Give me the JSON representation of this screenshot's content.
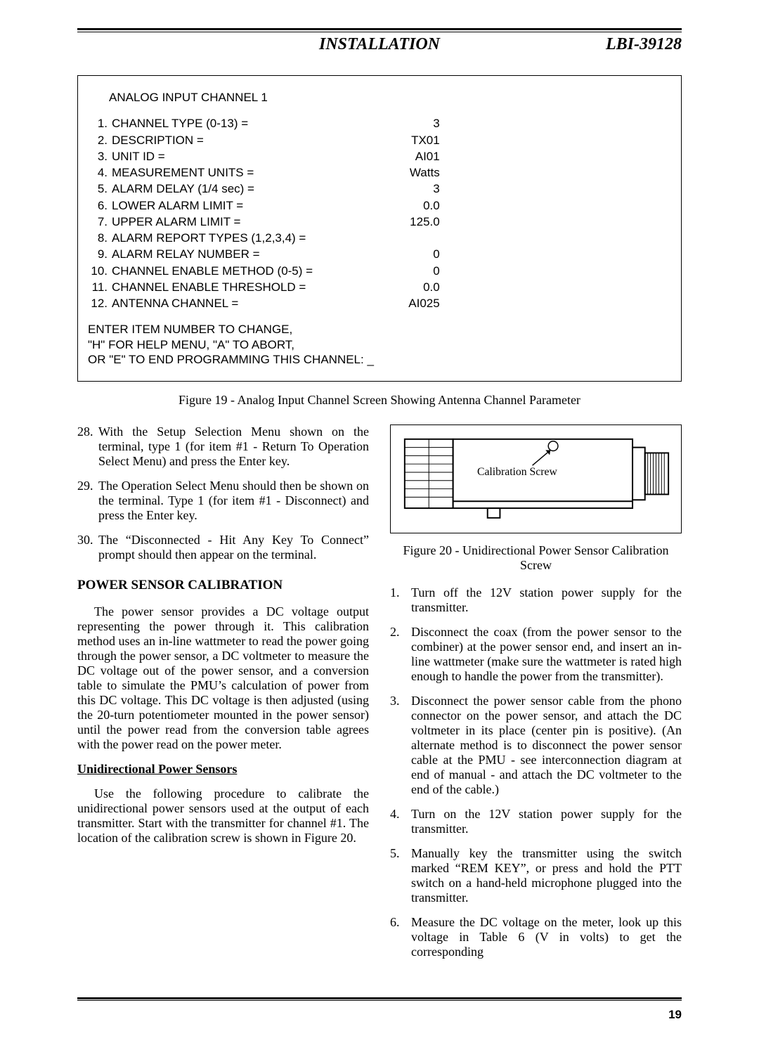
{
  "header": {
    "center": "INSTALLATION",
    "right": "LBI-39128"
  },
  "screen": {
    "title": "ANALOG INPUT CHANNEL 1",
    "params": [
      {
        "n": "1.",
        "label": "CHANNEL TYPE (0-13) =",
        "value": "3"
      },
      {
        "n": "2.",
        "label": "DESCRIPTION =",
        "value": "TX01"
      },
      {
        "n": "3.",
        "label": "UNIT ID =",
        "value": "AI01"
      },
      {
        "n": "4.",
        "label": "MEASUREMENT UNITS =",
        "value": "Watts"
      },
      {
        "n": "5.",
        "label": "ALARM DELAY (1/4 sec) =",
        "value": "3"
      },
      {
        "n": "6.",
        "label": "LOWER ALARM LIMIT =",
        "value": "0.0"
      },
      {
        "n": "7.",
        "label": "UPPER ALARM LIMIT =",
        "value": "125.0"
      },
      {
        "n": "8.",
        "label": "ALARM REPORT TYPES (1,2,3,4) =",
        "value": ""
      },
      {
        "n": "9.",
        "label": "ALARM RELAY NUMBER =",
        "value": "0"
      },
      {
        "n": "10.",
        "label": "CHANNEL ENABLE METHOD (0-5) =",
        "value": "0"
      },
      {
        "n": "11.",
        "label": "CHANNEL ENABLE THRESHOLD =",
        "value": "0.0"
      },
      {
        "n": "12.",
        "label": "ANTENNA CHANNEL =",
        "value": "AI025"
      }
    ],
    "footer1": "ENTER ITEM NUMBER TO CHANGE,",
    "footer2": "\"H\" FOR HELP MENU, \"A\" TO ABORT,",
    "footer3": "OR \"E\" TO END PROGRAMMING THIS CHANNEL: _"
  },
  "fig19": "Figure 19 - Analog Input Channel Screen Showing Antenna Channel Parameter",
  "left": {
    "steps": [
      {
        "n": "28.",
        "t": "With the Setup Selection Menu shown on the terminal, type 1 (for item #1 - Return To Operation Select Menu) and press the Enter key."
      },
      {
        "n": "29.",
        "t": "The Operation Select Menu should then be shown on the terminal. Type 1 (for item #1 - Disconnect) and press the Enter key."
      },
      {
        "n": "30.",
        "t": "The “Disconnected - Hit Any Key To Connect” prompt should then appear on the terminal."
      }
    ],
    "heading": "POWER SENSOR CALIBRATION",
    "para1": "The power sensor provides a DC voltage output representing the power through it. This calibration method uses an in-line wattmeter to read the power going through the power sensor, a DC voltmeter to measure the DC voltage out of the power sensor, and a conversion table to simulate the PMU’s calculation of power from this DC voltage. This DC voltage is then adjusted (using the 20-turn potentiometer mounted in the power sensor) until the power read from the conversion table agrees with the power read on the power meter.",
    "sub": "Unidirectional Power Sensors",
    "para2": "Use the following procedure to calibrate the unidirectional power sensors used at the output of each transmitter. Start with the transmitter for channel #1. The location of the calibration screw is shown in Figure 20."
  },
  "right": {
    "diagram_label": "Calibration Screw",
    "fig20": "Figure 20 - Unidirectional Power Sensor Calibration Screw",
    "steps": [
      {
        "n": "1.",
        "t": "Turn off the 12V station power supply for the transmitter."
      },
      {
        "n": "2.",
        "t": "Disconnect the coax (from the power sensor to the combiner) at the power sensor end, and insert an in-line wattmeter (make sure the wattmeter is rated high enough to handle the power from the transmitter)."
      },
      {
        "n": "3.",
        "t": "Disconnect the power sensor cable from the phono connector on the power sensor, and attach the DC voltmeter in its place (center pin is positive). (An alternate method is to disconnect the power sensor cable at the PMU - see interconnection diagram at end of manual - and attach the DC voltmeter to the end of the cable.)"
      },
      {
        "n": "4.",
        "t": "Turn on the 12V station power supply for the transmitter."
      },
      {
        "n": "5.",
        "t": "Manually key the transmitter using the switch marked “REM KEY”, or press and hold the PTT switch on a hand-held microphone plugged into the transmitter."
      },
      {
        "n": "6.",
        "t": "Measure the DC voltage on the meter, look up this voltage in Table 6 (V in volts) to get the corresponding"
      }
    ]
  },
  "page_num": "19",
  "style": {
    "body_font": "Times New Roman",
    "screen_font": "Arial",
    "text_color": "#000000",
    "bg_color": "#ffffff",
    "rule_color": "#000000",
    "body_fontsize": 18,
    "header_fontsize": 24,
    "screen_fontsize": 17
  }
}
